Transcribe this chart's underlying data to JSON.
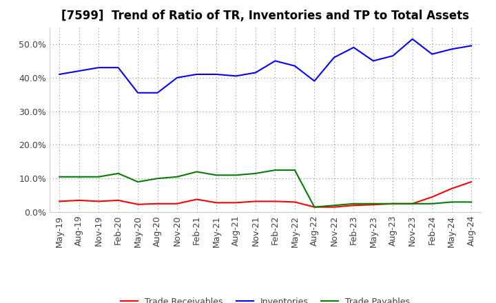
{
  "title": "[7599]  Trend of Ratio of TR, Inventories and TP to Total Assets",
  "labels": [
    "May-19",
    "Aug-19",
    "Nov-19",
    "Feb-20",
    "May-20",
    "Aug-20",
    "Nov-20",
    "Feb-21",
    "May-21",
    "Aug-21",
    "Nov-21",
    "Feb-22",
    "May-22",
    "Aug-22",
    "Nov-22",
    "Feb-23",
    "May-23",
    "Aug-23",
    "Nov-23",
    "Feb-24",
    "May-24",
    "Aug-24"
  ],
  "trade_receivables": [
    3.2,
    3.5,
    3.2,
    3.5,
    2.3,
    2.5,
    2.5,
    3.8,
    2.8,
    2.8,
    3.2,
    3.2,
    3.0,
    1.5,
    1.5,
    2.0,
    2.2,
    2.5,
    2.5,
    4.5,
    7.0,
    9.0
  ],
  "inventories": [
    41.0,
    42.0,
    43.0,
    43.0,
    35.5,
    35.5,
    40.0,
    41.0,
    41.0,
    40.5,
    41.5,
    45.0,
    43.5,
    39.0,
    46.0,
    49.0,
    45.0,
    46.5,
    51.5,
    47.0,
    48.5,
    49.5
  ],
  "trade_payables": [
    10.5,
    10.5,
    10.5,
    11.5,
    9.0,
    10.0,
    10.5,
    12.0,
    11.0,
    11.0,
    11.5,
    12.5,
    12.5,
    1.5,
    2.0,
    2.5,
    2.5,
    2.5,
    2.5,
    2.5,
    3.0,
    3.0
  ],
  "ylim": [
    0,
    55
  ],
  "yticks": [
    0,
    10,
    20,
    30,
    40,
    50
  ],
  "line_colors": {
    "trade_receivables": "#ff0000",
    "inventories": "#0000ff",
    "trade_payables": "#008000"
  },
  "background_color": "#ffffff",
  "grid_color": "#888888",
  "text_color": "#404040",
  "legend_labels": [
    "Trade Receivables",
    "Inventories",
    "Trade Payables"
  ],
  "title_fontsize": 12,
  "tick_fontsize": 9,
  "legend_fontsize": 9
}
